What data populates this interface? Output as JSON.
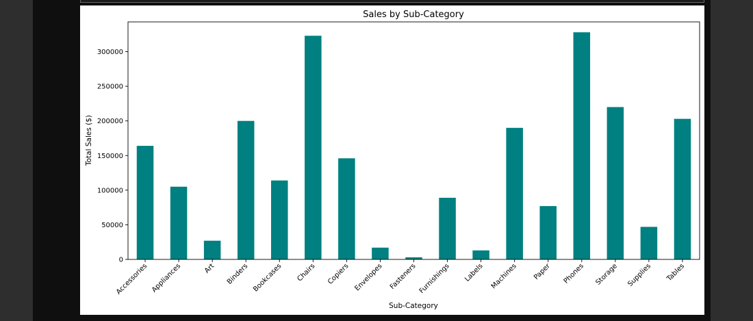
{
  "colors": {
    "page_background": "#2e2e2e",
    "gutter": "#0f0f0f",
    "figure_background": "#ffffff",
    "bar": "#008080",
    "axis": "#000000"
  },
  "chart_data": {
    "type": "bar",
    "title": "Sales by Sub-Category",
    "xlabel": "Sub-Category",
    "ylabel": "Total Sales ($)",
    "categories": [
      "Accessories",
      "Appliances",
      "Art",
      "Binders",
      "Bookcases",
      "Chairs",
      "Copiers",
      "Envelopes",
      "Fasteners",
      "Furnishings",
      "Labels",
      "Machines",
      "Paper",
      "Phones",
      "Storage",
      "Supplies",
      "Tables"
    ],
    "values": [
      164000,
      105000,
      27000,
      200000,
      114000,
      323000,
      146000,
      17000,
      3000,
      89000,
      13000,
      190000,
      77000,
      328000,
      220000,
      47000,
      203000
    ],
    "yticks": [
      0,
      50000,
      100000,
      150000,
      200000,
      250000,
      300000
    ],
    "ytick_labels": [
      "0",
      "50000",
      "100000",
      "150000",
      "200000",
      "250000",
      "300000"
    ],
    "ylim": [
      0,
      343000
    ],
    "grid": false,
    "legend": "none",
    "xtick_rotation": "45 degrees"
  }
}
